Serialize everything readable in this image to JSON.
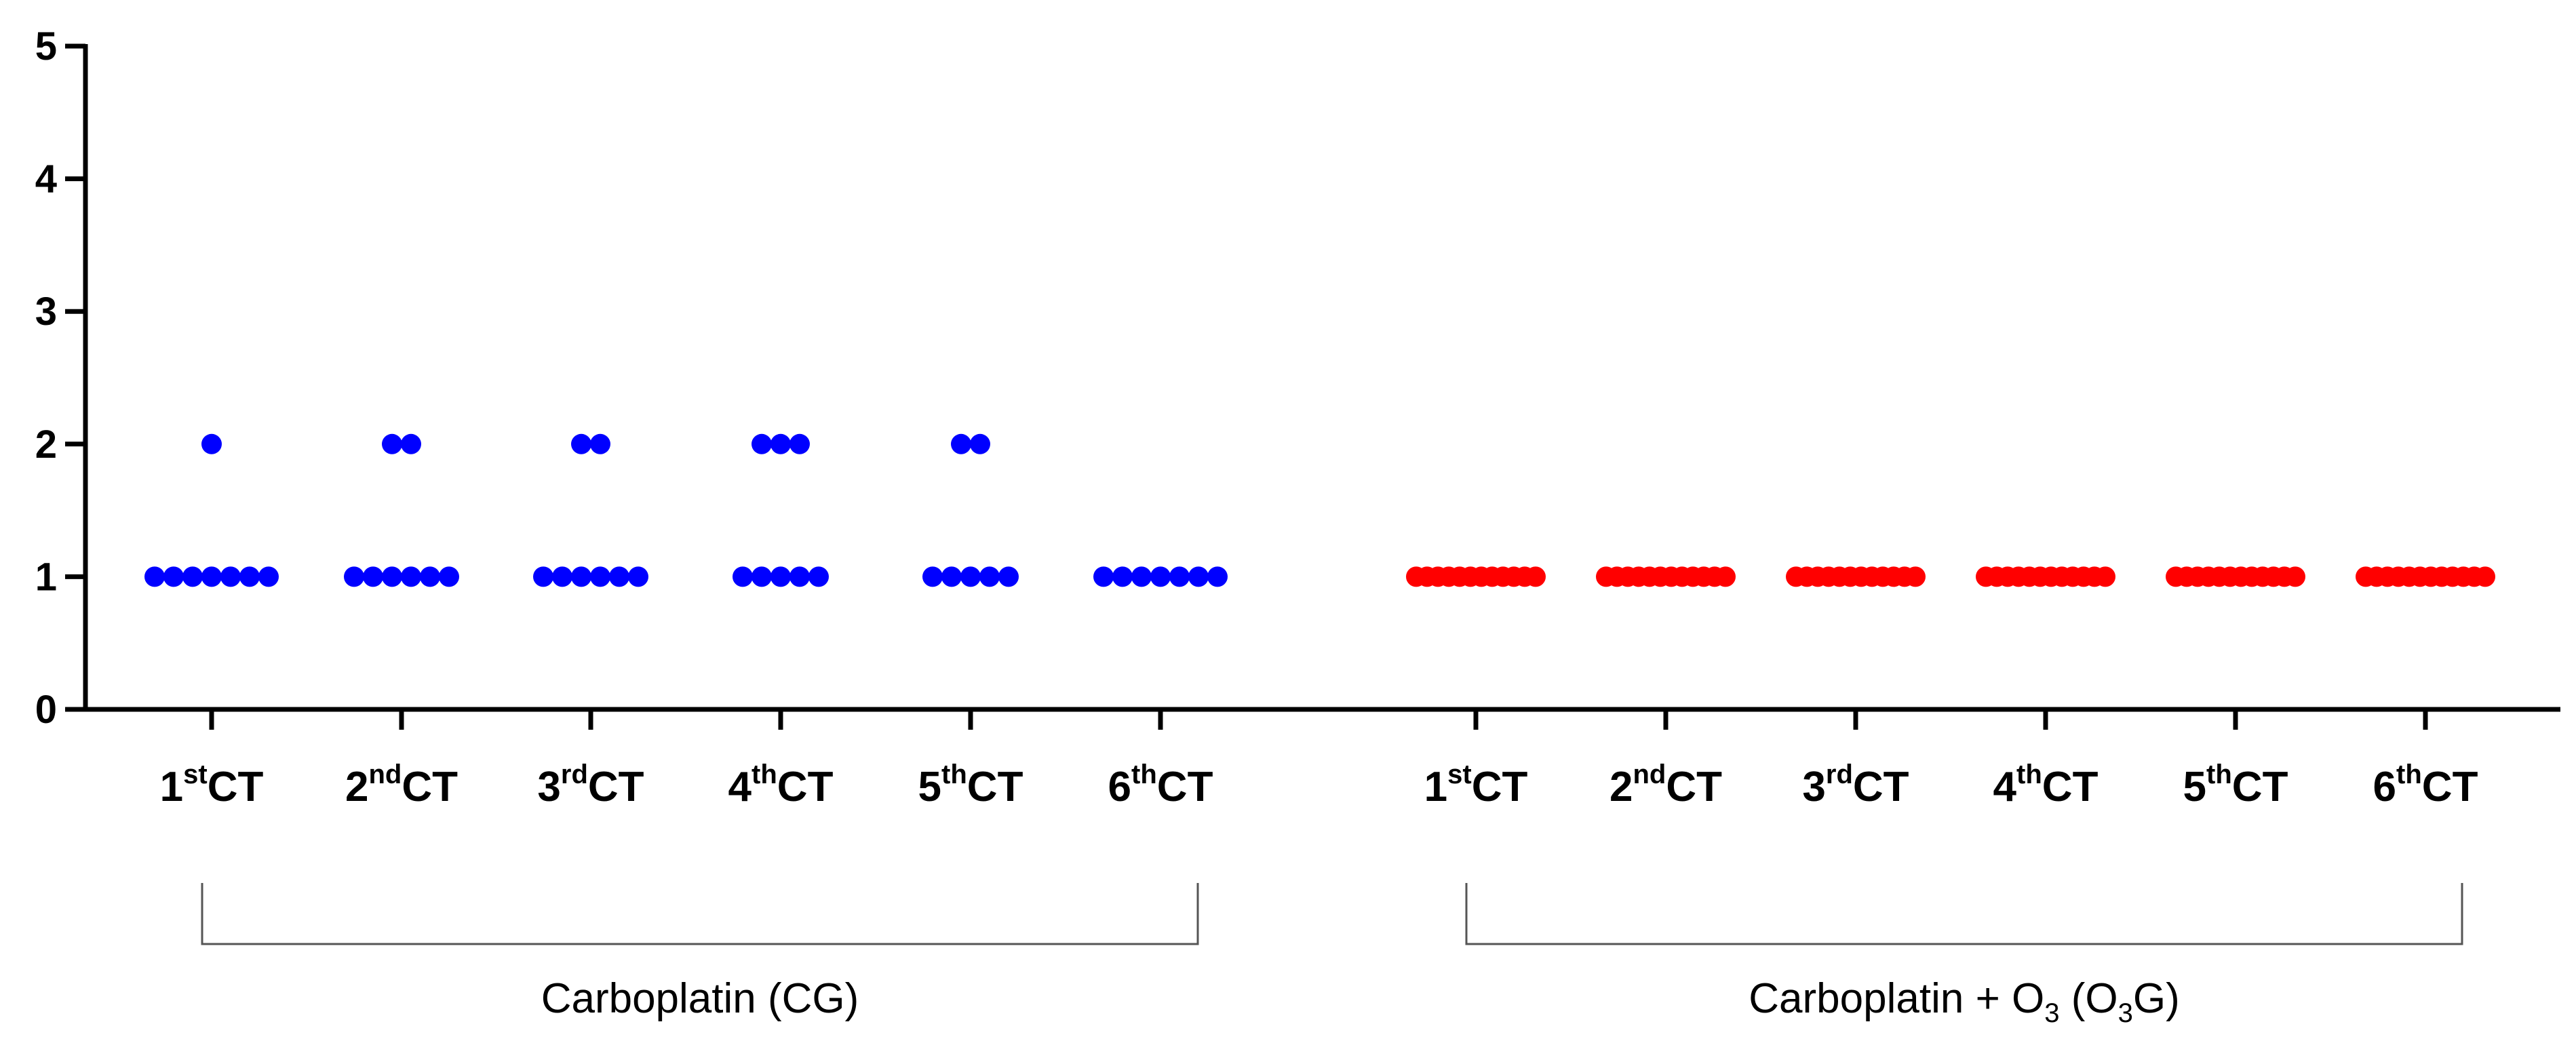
{
  "chart_data": {
    "type": "scatter",
    "title": "",
    "xlabel": "",
    "ylabel": "",
    "ylim": [
      0,
      5
    ],
    "y_ticks": [
      0,
      1,
      2,
      3,
      4,
      5
    ],
    "grid": false,
    "legend": "none",
    "colors": {
      "CG": "#0000ff",
      "O3G": "#ff0000"
    },
    "groups": [
      {
        "key": "CG",
        "label": "Carboplatin (CG)",
        "color": "#0000ff",
        "categories": [
          {
            "num": "1",
            "sup": "st",
            "suffix": "CT",
            "values": [
              2,
              1,
              1,
              1,
              1,
              1,
              1,
              1
            ]
          },
          {
            "num": "2",
            "sup": "nd",
            "suffix": "CT",
            "values": [
              2,
              2,
              1,
              1,
              1,
              1,
              1,
              1
            ]
          },
          {
            "num": "3",
            "sup": "rd",
            "suffix": "CT",
            "values": [
              2,
              2,
              1,
              1,
              1,
              1,
              1,
              1
            ]
          },
          {
            "num": "4",
            "sup": "th",
            "suffix": "CT",
            "values": [
              2,
              2,
              2,
              1,
              1,
              1,
              1,
              1
            ]
          },
          {
            "num": "5",
            "sup": "th",
            "suffix": "CT",
            "values": [
              2,
              2,
              1,
              1,
              1,
              1,
              1
            ]
          },
          {
            "num": "6",
            "sup": "th",
            "suffix": "CT",
            "values": [
              1,
              1,
              1,
              1,
              1,
              1,
              1
            ]
          }
        ]
      },
      {
        "key": "O3G",
        "label_parts": [
          "Carboplatin + O",
          "3",
          " (O",
          "3",
          "G)"
        ],
        "color": "#ff0000",
        "categories": [
          {
            "num": "1",
            "sup": "st",
            "suffix": "CT",
            "values": [
              1,
              1,
              1,
              1,
              1,
              1,
              1,
              1,
              1,
              1,
              1,
              1
            ]
          },
          {
            "num": "2",
            "sup": "nd",
            "suffix": "CT",
            "values": [
              1,
              1,
              1,
              1,
              1,
              1,
              1,
              1,
              1,
              1,
              1,
              1
            ]
          },
          {
            "num": "3",
            "sup": "rd",
            "suffix": "CT",
            "values": [
              1,
              1,
              1,
              1,
              1,
              1,
              1,
              1,
              1,
              1,
              1,
              1
            ]
          },
          {
            "num": "4",
            "sup": "th",
            "suffix": "CT",
            "values": [
              1,
              1,
              1,
              1,
              1,
              1,
              1,
              1,
              1,
              1,
              1,
              1
            ]
          },
          {
            "num": "5",
            "sup": "th",
            "suffix": "CT",
            "values": [
              1,
              1,
              1,
              1,
              1,
              1,
              1,
              1,
              1,
              1,
              1,
              1
            ]
          },
          {
            "num": "6",
            "sup": "th",
            "suffix": "CT",
            "values": [
              1,
              1,
              1,
              1,
              1,
              1,
              1,
              1,
              1,
              1,
              1,
              1
            ]
          }
        ]
      }
    ]
  }
}
